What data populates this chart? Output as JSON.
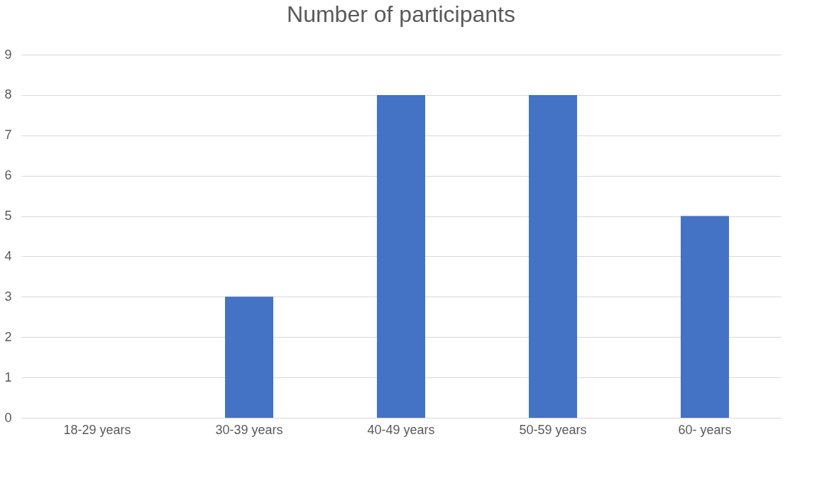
{
  "chart_data": {
    "type": "bar",
    "title": "Number of participants",
    "categories": [
      "18-29 years",
      "30-39 years",
      "40-49 years",
      "50-59 years",
      "60- years"
    ],
    "values": [
      0,
      3,
      8,
      8,
      5
    ],
    "color": "#4472c4",
    "ylim": [
      0,
      9
    ],
    "yticks": [
      0,
      1,
      2,
      3,
      4,
      5,
      6,
      7,
      8,
      9
    ],
    "grid": "y"
  }
}
